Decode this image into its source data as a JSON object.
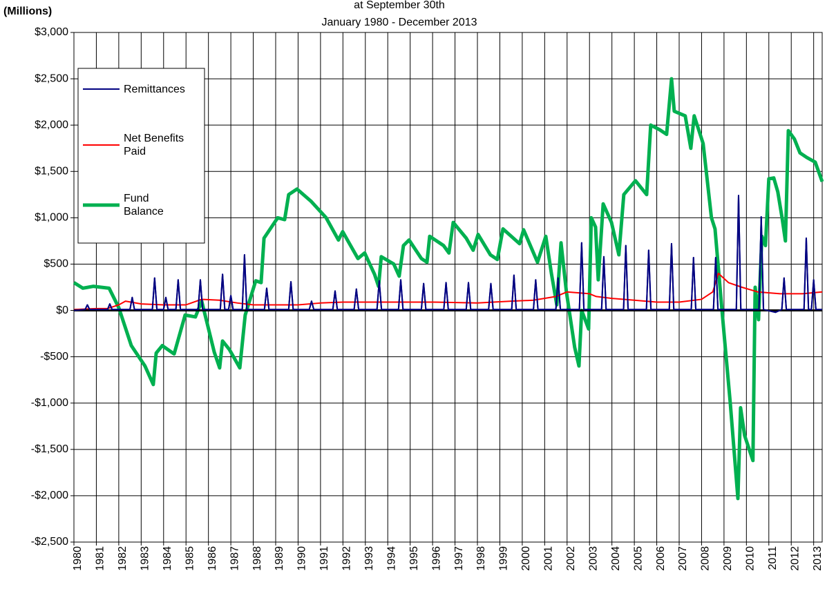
{
  "chart_data": {
    "type": "line",
    "title": "at September 30th",
    "subtitle": "January 1980 - December 2013",
    "ylabel": "(Millions)",
    "legend": "upper left",
    "grid": true,
    "xlim": [
      1980,
      2013.38
    ],
    "xticks": [
      1980,
      1981,
      1982,
      1983,
      1984,
      1985,
      1986,
      1987,
      1988,
      1989,
      1990,
      1991,
      1992,
      1993,
      1994,
      1995,
      1996,
      1997,
      1998,
      1999,
      2000,
      2001,
      2002,
      2003,
      2004,
      2005,
      2006,
      2007,
      2008,
      2009,
      2010,
      2011,
      2012,
      2013
    ],
    "ylim": [
      -2500,
      3000
    ],
    "yticks": [
      {
        "value": -2500,
        "label": "-$2,500"
      },
      {
        "value": -2000,
        "label": "-$2,000"
      },
      {
        "value": -1500,
        "label": "-$1,500"
      },
      {
        "value": -1000,
        "label": "-$1,000"
      },
      {
        "value": -500,
        "label": "-$500"
      },
      {
        "value": 0,
        "label": "$0"
      },
      {
        "value": 500,
        "label": "$500"
      },
      {
        "value": 1000,
        "label": "$1,000"
      },
      {
        "value": 1500,
        "label": "$1,500"
      },
      {
        "value": 2000,
        "label": "$2,000"
      },
      {
        "value": 2500,
        "label": "$2,500"
      },
      {
        "value": 3000,
        "label": "$3,000"
      }
    ],
    "series": [
      {
        "name": "Remittances",
        "color": "#000080",
        "width": 2,
        "x": [
          1980.0,
          1980.5,
          1980.6,
          1980.7,
          1981.5,
          1981.6,
          1981.7,
          1982.5,
          1982.6,
          1982.7,
          1983.5,
          1983.6,
          1983.7,
          1984.0,
          1984.1,
          1984.2,
          1984.55,
          1984.65,
          1984.75,
          1985.54,
          1985.64,
          1985.74,
          1986.53,
          1986.63,
          1986.73,
          1986.9,
          1987.0,
          1987.1,
          1987.51,
          1987.61,
          1987.71,
          1988.5,
          1988.6,
          1988.7,
          1989.58,
          1989.68,
          1989.78,
          1990.5,
          1990.6,
          1990.7,
          1991.55,
          1991.65,
          1991.75,
          1992.5,
          1992.6,
          1992.7,
          1993.52,
          1993.62,
          1993.72,
          1994.48,
          1994.58,
          1994.68,
          1995.5,
          1995.6,
          1995.7,
          1996.5,
          1996.6,
          1996.7,
          1997.5,
          1997.6,
          1997.7,
          1998.5,
          1998.6,
          1998.7,
          1999.53,
          1999.63,
          1999.73,
          2000.5,
          2000.6,
          2000.7,
          2001.5,
          2001.6,
          2001.7,
          2002.55,
          2002.65,
          2002.75,
          2003.54,
          2003.64,
          2003.74,
          2004.52,
          2004.62,
          2004.72,
          2005.54,
          2005.64,
          2005.74,
          2006.56,
          2006.66,
          2006.76,
          2007.54,
          2007.64,
          2007.74,
          2008.53,
          2008.63,
          2008.73,
          2009.55,
          2009.65,
          2009.75,
          2010.56,
          2010.66,
          2010.76,
          2011.3,
          2011.58,
          2011.68,
          2011.78,
          2012.57,
          2012.67,
          2012.77,
          2012.9,
          2013.0,
          2013.1,
          2013.38
        ],
        "values": [
          0,
          10,
          60,
          10,
          10,
          70,
          10,
          10,
          140,
          10,
          10,
          350,
          10,
          10,
          140,
          10,
          10,
          330,
          10,
          10,
          330,
          10,
          10,
          390,
          10,
          10,
          160,
          10,
          10,
          600,
          10,
          10,
          240,
          10,
          10,
          310,
          10,
          10,
          100,
          10,
          10,
          210,
          10,
          10,
          230,
          10,
          10,
          320,
          10,
          10,
          330,
          10,
          10,
          290,
          10,
          10,
          300,
          10,
          10,
          300,
          10,
          10,
          290,
          10,
          10,
          380,
          10,
          10,
          330,
          10,
          10,
          350,
          10,
          10,
          730,
          10,
          10,
          580,
          10,
          10,
          700,
          10,
          10,
          650,
          10,
          10,
          720,
          10,
          10,
          570,
          10,
          10,
          570,
          10,
          10,
          1240,
          10,
          10,
          1010,
          10,
          -20,
          10,
          350,
          10,
          10,
          780,
          10,
          10,
          330,
          10,
          10
        ]
      },
      {
        "name": "Net Benefits Paid",
        "color": "#ff0000",
        "width": 2,
        "x": [
          1980,
          1981,
          1981.5,
          1982,
          1982.3,
          1983,
          1984,
          1985,
          1985.7,
          1986.5,
          1987.3,
          1988,
          1990,
          1991,
          1992,
          1994,
          1996,
          1998,
          1999.5,
          2000.5,
          2001.5,
          2002,
          2003,
          2003.3,
          2004,
          2005,
          2006,
          2007,
          2008,
          2008.5,
          2008.75,
          2009.2,
          2009.8,
          2010.5,
          2011.5,
          2012.5,
          2013.38
        ],
        "values": [
          10,
          20,
          20,
          60,
          100,
          70,
          60,
          60,
          120,
          110,
          80,
          60,
          60,
          80,
          90,
          90,
          90,
          80,
          100,
          110,
          150,
          200,
          180,
          150,
          130,
          110,
          90,
          90,
          120,
          200,
          400,
          300,
          250,
          200,
          180,
          180,
          200
        ]
      },
      {
        "name": "Fund Balance",
        "color": "#00b050",
        "width": 5,
        "x": [
          1980.0,
          1980.4,
          1980.86,
          1981.57,
          1982.0,
          1982.56,
          1983.17,
          1983.54,
          1983.67,
          1983.94,
          1984.47,
          1984.96,
          1985.42,
          1985.7,
          1986.26,
          1986.5,
          1986.63,
          1986.93,
          1987.4,
          1987.64,
          1988.11,
          1988.35,
          1988.48,
          1989.09,
          1989.4,
          1989.58,
          1989.95,
          1990.57,
          1991.25,
          1991.8,
          1991.99,
          1992.67,
          1992.97,
          1993.41,
          1993.59,
          1993.71,
          1994.27,
          1994.51,
          1994.7,
          1994.95,
          1995.5,
          1995.75,
          1995.87,
          1996.49,
          1996.73,
          1996.92,
          1997.5,
          1997.81,
          1998.03,
          1998.58,
          1998.89,
          1999.14,
          1999.88,
          2000.06,
          2000.68,
          2001.05,
          2001.3,
          2001.54,
          2001.73,
          2001.97,
          2002.34,
          2002.53,
          2002.65,
          2002.96,
          2003.08,
          2003.27,
          2003.39,
          2003.61,
          2003.98,
          2004.31,
          2004.53,
          2005.05,
          2005.55,
          2005.73,
          2006.13,
          2006.44,
          2006.66,
          2006.78,
          2007.27,
          2007.52,
          2007.67,
          2008.07,
          2008.44,
          2008.6,
          2008.91,
          2009.28,
          2009.62,
          2009.74,
          2009.92,
          2010.29,
          2010.39,
          2010.54,
          2010.69,
          2010.85,
          2011.0,
          2011.22,
          2011.4,
          2011.59,
          2011.74,
          2011.87,
          2012.14,
          2012.39,
          2012.7,
          2013.07,
          2013.38
        ],
        "values": [
          300,
          240,
          260,
          240,
          30,
          -380,
          -600,
          -800,
          -460,
          -380,
          -470,
          -50,
          -70,
          100,
          -450,
          -620,
          -330,
          -420,
          -620,
          -50,
          320,
          300,
          780,
          1000,
          980,
          1250,
          1310,
          1180,
          1000,
          760,
          850,
          560,
          620,
          390,
          260,
          580,
          500,
          370,
          700,
          760,
          560,
          520,
          800,
          700,
          620,
          950,
          780,
          650,
          820,
          600,
          550,
          880,
          720,
          870,
          520,
          800,
          400,
          60,
          730,
          200,
          -400,
          -600,
          0,
          -200,
          1000,
          900,
          330,
          1150,
          950,
          600,
          1250,
          1400,
          1250,
          2000,
          1950,
          1900,
          2500,
          2150,
          2100,
          1750,
          2100,
          1800,
          1000,
          880,
          0,
          -1000,
          -2030,
          -1050,
          -1350,
          -1620,
          250,
          -100,
          800,
          700,
          1420,
          1430,
          1280,
          1000,
          750,
          1940,
          1850,
          1700,
          1650,
          1600,
          1390
        ]
      }
    ]
  }
}
